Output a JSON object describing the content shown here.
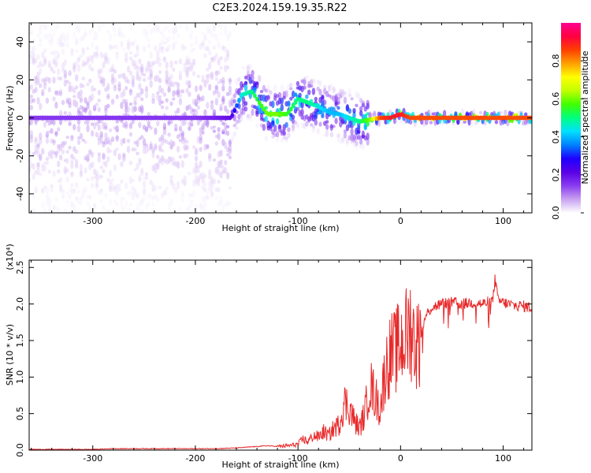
{
  "title": "C2E3.2024.159.19.35.R22",
  "chart_data": [
    {
      "type": "heatmap",
      "xlabel": "Height of straight line (km)",
      "ylabel": "Frequency (Hz)",
      "xlim": [
        -362,
        128
      ],
      "ylim": [
        -50,
        50
      ],
      "xticks": [
        -300,
        -200,
        -100,
        0,
        100
      ],
      "xtick_labels": [
        "-300",
        "-200",
        "-100",
        "0",
        "100"
      ],
      "yticks": [
        -40,
        -20,
        0,
        20,
        40
      ],
      "ytick_labels": [
        "-40",
        "-20",
        "0",
        "20",
        "40"
      ],
      "grid": false,
      "colorbar": {
        "label": "Normalized spectral amplitude",
        "range": [
          0,
          1
        ],
        "ticks": [
          0.0,
          0.2,
          0.4,
          0.6,
          0.8
        ],
        "tick_labels": [
          "0.0",
          "0.2",
          "0.4",
          "0.6",
          "0.8"
        ],
        "colormap": [
          "#ffffff",
          "#c8a2f0",
          "#8a3cf0",
          "#5a00e6",
          "#1e00ff",
          "#0080ff",
          "#00e0ff",
          "#00ff80",
          "#40ff00",
          "#c0ff00",
          "#ffff00",
          "#ffa000",
          "#ff4000",
          "#ff0040",
          "#ff0090"
        ]
      },
      "description_ridge": {
        "x": [
          -362,
          -300,
          -250,
          -200,
          -165,
          -155,
          -145,
          -130,
          -120,
          -110,
          -100,
          -90,
          -80,
          -70,
          -60,
          -50,
          -40,
          -30,
          -20,
          -10,
          0,
          10,
          30,
          60,
          90,
          128
        ],
        "y": [
          0,
          0,
          0,
          0,
          0,
          12,
          14,
          2,
          2,
          2,
          10,
          8,
          6,
          3,
          2,
          0,
          -2,
          -1,
          0,
          0,
          2,
          0,
          0,
          0,
          0,
          0
        ],
        "amplitude": [
          0.15,
          0.15,
          0.15,
          0.15,
          0.2,
          0.45,
          0.5,
          0.6,
          0.6,
          0.55,
          0.5,
          0.5,
          0.45,
          0.4,
          0.4,
          0.45,
          0.5,
          0.6,
          0.85,
          0.9,
          0.9,
          0.85,
          0.85,
          0.85,
          0.85,
          0.85
        ]
      }
    },
    {
      "type": "line",
      "xlabel": "Height of straight line (km)",
      "ylabel": "SNR (10 * v/v)",
      "y_multiplier": "(x10⁴)",
      "xlim": [
        -362,
        128
      ],
      "ylim": [
        0,
        2.6
      ],
      "xticks": [
        -300,
        -200,
        -100,
        0,
        100
      ],
      "xtick_labels": [
        "-300",
        "-200",
        "-100",
        "0",
        "100"
      ],
      "yticks": [
        0.0,
        0.5,
        1.0,
        1.5,
        2.0,
        2.5
      ],
      "ytick_labels": [
        "0.0",
        "0.5",
        "1.0",
        "1.5",
        "2.0",
        "2.5"
      ],
      "grid": false,
      "series": [
        {
          "color": "#e8292a",
          "x": [
            -362,
            -340,
            -320,
            -300,
            -280,
            -260,
            -240,
            -220,
            -200,
            -180,
            -160,
            -140,
            -130,
            -120,
            -110,
            -100,
            -95,
            -90,
            -85,
            -80,
            -75,
            -70,
            -65,
            -60,
            -55,
            -50,
            -45,
            -40,
            -35,
            -30,
            -25,
            -20,
            -15,
            -10,
            -5,
            0,
            5,
            10,
            15,
            20,
            25,
            30,
            40,
            50,
            60,
            70,
            80,
            90,
            92,
            95,
            100,
            110,
            120,
            128
          ],
          "y": [
            0.01,
            0.01,
            0.01,
            0.01,
            0.02,
            0.02,
            0.02,
            0.02,
            0.02,
            0.02,
            0.03,
            0.05,
            0.06,
            0.05,
            0.06,
            0.08,
            0.15,
            0.12,
            0.2,
            0.18,
            0.25,
            0.2,
            0.3,
            0.35,
            0.65,
            0.6,
            0.4,
            0.3,
            0.5,
            0.9,
            0.75,
            0.55,
            1.1,
            1.3,
            1.35,
            1.45,
            1.55,
            1.7,
            1.4,
            1.6,
            1.85,
            1.95,
            2.0,
            2.02,
            2.0,
            2.02,
            2.0,
            2.05,
            2.35,
            2.05,
            2.02,
            1.98,
            1.97,
            1.95
          ]
        }
      ]
    }
  ]
}
